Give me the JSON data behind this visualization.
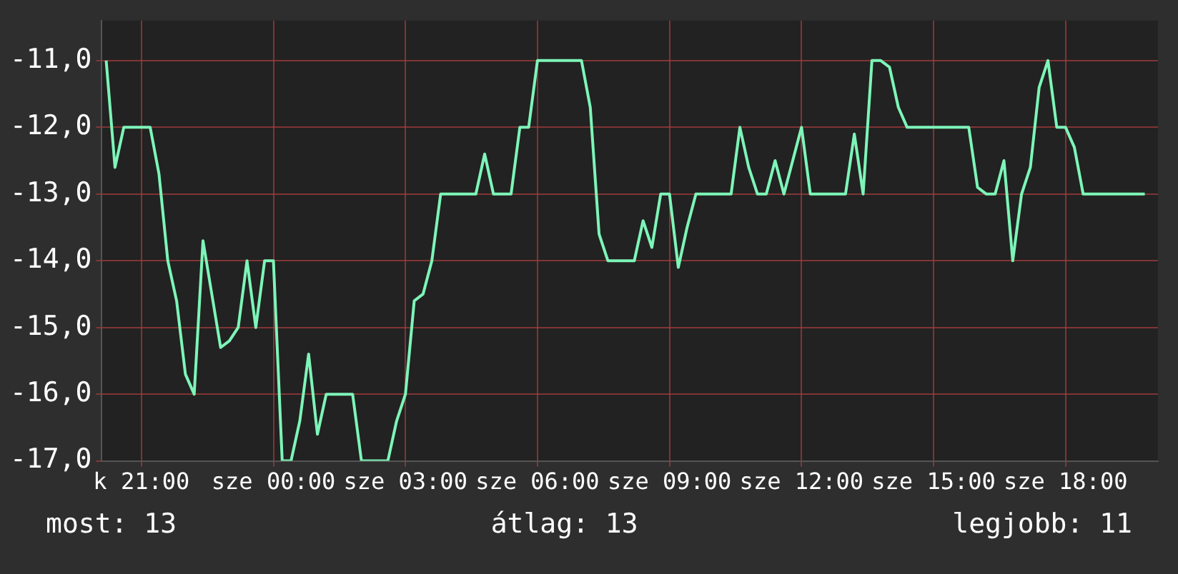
{
  "chart_data": {
    "type": "line",
    "categories": [
      null,
      null,
      null,
      null,
      "k 21:00",
      null,
      null,
      null,
      null,
      null,
      null,
      null,
      null,
      null,
      null,
      null,
      null,
      null,
      null,
      "sze 00:00",
      null,
      null,
      null,
      null,
      null,
      null,
      null,
      null,
      null,
      null,
      null,
      null,
      null,
      null,
      "sze 03:00",
      null,
      null,
      null,
      null,
      null,
      null,
      null,
      null,
      null,
      null,
      null,
      null,
      null,
      null,
      "sze 06:00",
      null,
      null,
      null,
      null,
      null,
      null,
      null,
      null,
      null,
      null,
      null,
      null,
      null,
      null,
      "sze 09:00",
      null,
      null,
      null,
      null,
      null,
      null,
      null,
      null,
      null,
      null,
      null,
      null,
      null,
      null,
      "sze 12:00",
      null,
      null,
      null,
      null,
      null,
      null,
      null,
      null,
      null,
      null,
      null,
      null,
      null,
      null,
      "sze 15:00",
      null,
      null,
      null,
      null,
      null,
      null,
      null,
      null,
      null,
      null,
      null,
      null,
      null,
      null,
      "sze 18:00",
      null,
      null,
      null,
      null,
      null,
      null,
      null,
      null,
      null,
      null
    ],
    "series": [
      {
        "color": "#7df5b8",
        "values": [
          -11,
          -12.6,
          -12,
          -12,
          -12,
          -12,
          -12.7,
          -14,
          -14.6,
          -15.7,
          -16,
          -13.7,
          -14.5,
          -15.3,
          -15.2,
          -15,
          -14,
          -15,
          -14,
          -14,
          -17,
          -17,
          -16.4,
          -15.4,
          -16.6,
          -16,
          -16,
          -16,
          -16,
          -17,
          -17,
          -17,
          -17,
          -16.4,
          -16,
          -14.6,
          -14.5,
          -14,
          -13,
          -13,
          -13,
          -13,
          -13,
          -12.4,
          -13,
          -13,
          -13,
          -12,
          -12,
          -11,
          -11,
          -11,
          -11,
          -11,
          -11,
          -11.7,
          -13.6,
          -14,
          -14,
          -14,
          -14,
          -13.4,
          -13.8,
          -13,
          -13,
          -14.1,
          -13.5,
          -13,
          -13,
          -13,
          -13,
          -13,
          -12,
          -12.6,
          -13,
          -13,
          -12.5,
          -13,
          -12.5,
          -12,
          -13,
          -13,
          -13,
          -13,
          -13,
          -12.1,
          -13,
          -11,
          -11,
          -11.1,
          -11.7,
          -12,
          -12,
          -12,
          -12,
          -12,
          -12,
          -12,
          -12,
          -12.9,
          -13,
          -13,
          -12.5,
          -14,
          -13,
          -12.6,
          -11.4,
          -11,
          -12,
          -12,
          -12.3,
          -13,
          -13,
          -13,
          -13,
          -13,
          -13,
          -13,
          -13,
          null
        ]
      }
    ],
    "ylim": [
      -17,
      -10.4
    ],
    "yticks": [
      {
        "value": -17,
        "label": "-17,0"
      },
      {
        "value": -16,
        "label": "-16,0"
      },
      {
        "value": -15,
        "label": "-15,0"
      },
      {
        "value": -14,
        "label": "-14,0"
      },
      {
        "value": -13,
        "label": "-13,0"
      },
      {
        "value": -12,
        "label": "-12,0"
      },
      {
        "value": -11,
        "label": "-11,0"
      }
    ],
    "grid": true,
    "annotations": [
      "most: 13",
      "átlag: 13",
      "legjobb: 11"
    ]
  }
}
